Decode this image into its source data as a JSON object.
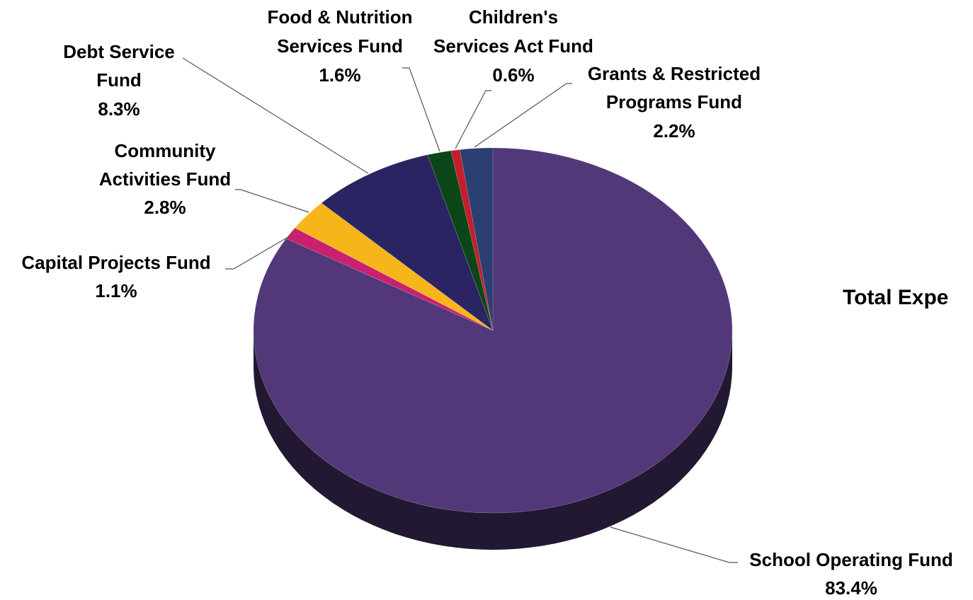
{
  "chart_data": {
    "type": "pie",
    "title": "Total Expe",
    "slices": [
      {
        "name": "School Operating Fund",
        "value": 83.4,
        "label": "83.4%",
        "color": "#523878"
      },
      {
        "name": "Capital Projects Fund",
        "value": 1.1,
        "label": "1.1%",
        "color": "#c92070"
      },
      {
        "name": "Community Activities Fund",
        "value": 2.8,
        "label": "2.8%",
        "color": "#f7b51c"
      },
      {
        "name": "Debt Service Fund",
        "value": 8.3,
        "label": "8.3%",
        "color": "#2a2462"
      },
      {
        "name": "Food & Nutrition Services Fund",
        "value": 1.6,
        "label": "1.6%",
        "color": "#0a4618"
      },
      {
        "name": "Children's Services Act Fund",
        "value": 0.6,
        "label": "0.6%",
        "color": "#c41e2a"
      },
      {
        "name": "Grants & Restricted Programs Fund",
        "value": 2.2,
        "label": "2.2%",
        "color": "#2a3f72"
      }
    ],
    "labels": {
      "school": {
        "lines": [
          "School Operating Fund"
        ],
        "pct": "83.4%"
      },
      "capital": {
        "lines": [
          "Capital Projects Fund"
        ],
        "pct": "1.1%"
      },
      "community": {
        "lines": [
          "Community",
          "Activities Fund"
        ],
        "pct": "2.8%"
      },
      "debt": {
        "lines": [
          "Debt Service",
          "Fund"
        ],
        "pct": "8.3%"
      },
      "food": {
        "lines": [
          "Food & Nutrition",
          "Services Fund"
        ],
        "pct": "1.6%"
      },
      "children": {
        "lines": [
          "Children's",
          "Services Act Fund"
        ],
        "pct": "0.6%"
      },
      "grants": {
        "lines": [
          "Grants & Restricted",
          "Programs Fund"
        ],
        "pct": "2.2%"
      }
    },
    "style": "3d-pie",
    "legend": "none"
  }
}
